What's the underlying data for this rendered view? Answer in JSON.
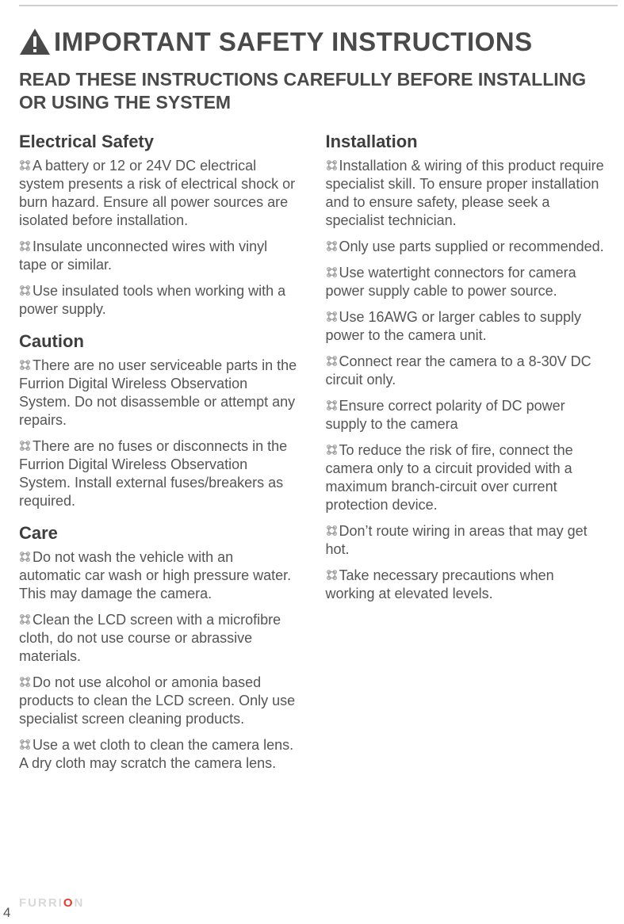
{
  "colors": {
    "text": "#4a4a4a",
    "muted": "#555555",
    "rule": "#d0d0d0",
    "brand_gray": "#d8d8d8",
    "brand_accent": "#e63b2e",
    "icon_fill": "#4a4a4a",
    "bullet_stroke": "#9a9a9a"
  },
  "title": "IMPORTANT SAFETY INSTRUCTIONS",
  "subtitle": "READ THESE INSTRUCTIONS CAREFULLY BEFORE INSTALLING OR USING THE SYSTEM",
  "left": {
    "sections": [
      {
        "heading": "Electrical Safety",
        "items": [
          "A battery or 12 or 24V DC electrical system presents a risk of electrical shock or burn hazard. Ensure all power sources are isolated before installa­tion.",
          "Insulate unconnected wires with vinyl tape or similar.",
          "Use insulated tools when working with a power supply."
        ]
      },
      {
        "heading": "Caution",
        "items": [
          "There are no user serviceable parts in the Furrion Digital Wireless Obser­vation System. Do not disassemble or attempt any repairs.",
          "There are no fuses or disconnects in  the Furrion Digital Wireless Obser­vation System. Install external fuses/breakers as required."
        ]
      },
      {
        "heading": "Care",
        "items": [
          "Do not wash the vehicle with an automatic car wash or high pressure water. This may damage the camera.",
          "Clean the LCD screen with a microfi­bre cloth, do not use course or abras­sive materials.",
          "Do not use alcohol or amonia based products to clean the LCD screen. Only use specialist screen cleaning products.",
          "Use a wet cloth to clean the cam­era lens. A dry cloth may scratch the camera lens."
        ]
      }
    ]
  },
  "right": {
    "sections": [
      {
        "heading": "Installation",
        "items": [
          "Installation & wiring of this product require specialist skill. To ensure prop­er installation and to ensure safety, please seek a specialist technician.",
          "Only use parts supplied or recom­mended.",
          "Use watertight connectors for camera power supply cable to power source.",
          "Use 16AWG or larger cables to sup­ply power to the camera unit.",
          "Connect rear the camera to a 8-30V DC circuit only.",
          "Ensure correct polarity of DC power supply to the camera",
          "To reduce the risk of fire, connect the camera only to a circuit provided with a maximum branch-circuit over current protection device.",
          "Don’t route wiring in areas that may get hot.",
          "Take necessary precautions when working at elevated levels."
        ]
      }
    ]
  },
  "brand": {
    "gray": "FURRI",
    "accent": "O",
    "gray2": "N"
  },
  "page_number": "4"
}
